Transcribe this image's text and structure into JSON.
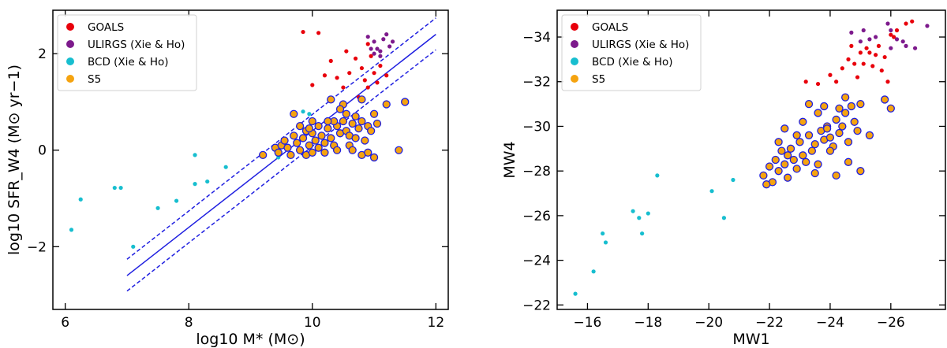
{
  "chart_data": [
    {
      "type": "scatter",
      "panel": "left",
      "xlabel": "log10 M* (M⊙)",
      "ylabel": "log10 SFR_W4 (M⊙ yr−1)",
      "xlim": [
        5.8,
        12.2
      ],
      "ylim": [
        -3.3,
        2.9
      ],
      "xticks": [
        6,
        8,
        10,
        12
      ],
      "xtick_labels": [
        "6",
        "8",
        "10",
        "12"
      ],
      "yticks": [
        -2,
        0,
        2
      ],
      "ytick_labels": [
        "−2",
        "0",
        "2"
      ],
      "legend_position": "top-left",
      "legend": [
        {
          "label": "GOALS",
          "color": "#e8000b"
        },
        {
          "label": "ULIRGS (Xie & Ho)",
          "color": "#7d1a8c"
        },
        {
          "label": "BCD (Xie & Ho)",
          "color": "#17becf"
        },
        {
          "label": "S5",
          "color": "#f5a30f"
        }
      ],
      "fit_lines": [
        {
          "name": "relation",
          "style": "solid",
          "x": [
            7.0,
            12.0
          ],
          "y": [
            -2.6,
            2.4
          ]
        },
        {
          "name": "upper",
          "style": "dashed",
          "x": [
            7.0,
            12.0
          ],
          "y": [
            -2.26,
            2.74
          ]
        },
        {
          "name": "lower",
          "style": "dashed",
          "x": [
            7.0,
            12.0
          ],
          "y": [
            -2.92,
            2.08
          ]
        }
      ],
      "series": [
        {
          "name": "GOALS",
          "color": "#e8000b",
          "points": [
            [
              9.85,
              2.45
            ],
            [
              10.1,
              2.43
            ],
            [
              10.3,
              1.85
            ],
            [
              10.55,
              2.05
            ],
            [
              10.6,
              1.6
            ],
            [
              10.7,
              1.9
            ],
            [
              10.8,
              1.7
            ],
            [
              10.85,
              1.45
            ],
            [
              10.9,
              1.3
            ],
            [
              10.95,
              1.95
            ],
            [
              11.0,
              1.6
            ],
            [
              11.05,
              1.4
            ],
            [
              11.1,
              1.75
            ],
            [
              10.2,
              1.55
            ],
            [
              10.4,
              1.5
            ],
            [
              10.0,
              1.35
            ],
            [
              10.9,
              2.2
            ],
            [
              11.2,
              1.55
            ],
            [
              10.75,
              1.1
            ],
            [
              10.5,
              1.3
            ]
          ]
        },
        {
          "name": "ULIRGS (Xie & Ho)",
          "color": "#7d1a8c",
          "points": [
            [
              10.9,
              2.35
            ],
            [
              11.0,
              2.25
            ],
            [
              11.05,
              2.1
            ],
            [
              11.1,
              2.05
            ],
            [
              11.15,
              2.3
            ],
            [
              11.2,
              2.4
            ],
            [
              11.3,
              2.25
            ],
            [
              11.25,
              2.15
            ],
            [
              11.0,
              2.0
            ],
            [
              11.1,
              1.95
            ],
            [
              10.95,
              2.1
            ]
          ]
        },
        {
          "name": "BCD (Xie & Ho)",
          "color": "#17becf",
          "points": [
            [
              6.1,
              -1.65
            ],
            [
              6.25,
              -1.02
            ],
            [
              6.8,
              -0.78
            ],
            [
              6.9,
              -0.78
            ],
            [
              7.1,
              -2.0
            ],
            [
              7.5,
              -1.2
            ],
            [
              7.8,
              -1.05
            ],
            [
              8.1,
              -0.7
            ],
            [
              8.1,
              -0.1
            ],
            [
              8.3,
              -0.65
            ],
            [
              8.6,
              -0.35
            ],
            [
              9.45,
              -0.15
            ],
            [
              9.85,
              0.8
            ],
            [
              9.95,
              0.75
            ],
            [
              10.05,
              0.2
            ]
          ]
        },
        {
          "name": "S5",
          "color": "#f5a30f",
          "points": [
            [
              9.2,
              -0.1
            ],
            [
              9.4,
              0.05
            ],
            [
              9.45,
              -0.05
            ],
            [
              9.5,
              0.1
            ],
            [
              9.55,
              0.2
            ],
            [
              9.6,
              0.05
            ],
            [
              9.65,
              -0.1
            ],
            [
              9.7,
              0.3
            ],
            [
              9.75,
              0.15
            ],
            [
              9.8,
              0.0
            ],
            [
              9.85,
              0.25
            ],
            [
              9.9,
              0.4
            ],
            [
              9.95,
              0.1
            ],
            [
              10.0,
              0.35
            ],
            [
              10.05,
              0.2
            ],
            [
              10.1,
              0.05
            ],
            [
              10.15,
              0.3
            ],
            [
              10.2,
              0.15
            ],
            [
              10.25,
              0.45
            ],
            [
              10.3,
              0.25
            ],
            [
              10.35,
              0.1
            ],
            [
              10.4,
              0.5
            ],
            [
              10.45,
              0.35
            ],
            [
              10.5,
              0.6
            ],
            [
              10.55,
              0.4
            ],
            [
              10.6,
              0.3
            ],
            [
              10.65,
              0.55
            ],
            [
              10.7,
              0.7
            ],
            [
              10.75,
              0.45
            ],
            [
              10.8,
              0.6
            ],
            [
              10.85,
              0.2
            ],
            [
              10.9,
              0.5
            ],
            [
              10.95,
              0.4
            ],
            [
              11.0,
              0.75
            ],
            [
              11.05,
              0.55
            ],
            [
              9.9,
              -0.1
            ],
            [
              10.0,
              -0.05
            ],
            [
              10.2,
              -0.05
            ],
            [
              10.4,
              0.0
            ],
            [
              10.6,
              0.1
            ],
            [
              10.8,
              -0.1
            ],
            [
              11.4,
              0.0
            ],
            [
              11.5,
              1.0
            ],
            [
              11.2,
              0.95
            ],
            [
              10.3,
              1.05
            ],
            [
              10.5,
              0.95
            ],
            [
              10.8,
              1.05
            ],
            [
              10.7,
              0.25
            ],
            [
              10.45,
              0.85
            ],
            [
              10.0,
              0.6
            ],
            [
              9.8,
              0.5
            ],
            [
              9.7,
              0.75
            ],
            [
              10.35,
              0.6
            ],
            [
              10.55,
              0.75
            ],
            [
              10.65,
              0.0
            ],
            [
              10.1,
              0.5
            ],
            [
              9.95,
              0.45
            ],
            [
              10.25,
              0.6
            ],
            [
              10.9,
              -0.05
            ],
            [
              11.0,
              -0.15
            ]
          ]
        }
      ],
      "ringed_series": "S5"
    },
    {
      "type": "scatter",
      "panel": "right",
      "xlabel": "MW1",
      "ylabel": "MW4",
      "xlim": [
        -15.0,
        -27.8
      ],
      "ylim": [
        -21.8,
        -35.2
      ],
      "xticks": [
        -16,
        -18,
        -20,
        -22,
        -24,
        -26
      ],
      "xtick_labels": [
        "−16",
        "−18",
        "−20",
        "−22",
        "−24",
        "−26"
      ],
      "yticks": [
        -22,
        -24,
        -26,
        -28,
        -30,
        -32,
        -34
      ],
      "ytick_labels": [
        "−22",
        "−24",
        "−26",
        "−28",
        "−30",
        "−32",
        "−34"
      ],
      "legend_position": "top-left",
      "legend": [
        {
          "label": "GOALS",
          "color": "#e8000b"
        },
        {
          "label": "ULIRGS (Xie & Ho)",
          "color": "#7d1a8c"
        },
        {
          "label": "BCD (Xie & Ho)",
          "color": "#17becf"
        },
        {
          "label": "S5",
          "color": "#f5a30f"
        }
      ],
      "series": [
        {
          "name": "GOALS",
          "color": "#e8000b",
          "points": [
            [
              -23.2,
              -32.0
            ],
            [
              -23.6,
              -31.9
            ],
            [
              -24.0,
              -32.3
            ],
            [
              -24.2,
              -32.0
            ],
            [
              -24.4,
              -32.6
            ],
            [
              -24.6,
              -33.0
            ],
            [
              -24.9,
              -32.2
            ],
            [
              -25.1,
              -32.8
            ],
            [
              -25.2,
              -33.5
            ],
            [
              -25.3,
              -33.3
            ],
            [
              -25.5,
              -33.2
            ],
            [
              -25.6,
              -33.6
            ],
            [
              -25.8,
              -33.1
            ],
            [
              -26.0,
              -34.1
            ],
            [
              -26.2,
              -34.3
            ],
            [
              -26.5,
              -34.6
            ],
            [
              -26.7,
              -34.7
            ],
            [
              -24.7,
              -33.6
            ],
            [
              -25.0,
              -33.3
            ],
            [
              -24.8,
              -32.8
            ],
            [
              -25.4,
              -32.7
            ],
            [
              -25.9,
              -32.0
            ],
            [
              -26.1,
              -34.0
            ],
            [
              -25.7,
              -32.5
            ]
          ]
        },
        {
          "name": "ULIRGS (Xie & Ho)",
          "color": "#7d1a8c",
          "points": [
            [
              -24.7,
              -34.2
            ],
            [
              -25.0,
              -33.8
            ],
            [
              -25.1,
              -34.3
            ],
            [
              -25.3,
              -33.9
            ],
            [
              -25.5,
              -34.0
            ],
            [
              -25.9,
              -34.6
            ],
            [
              -26.0,
              -34.3
            ],
            [
              -26.2,
              -33.9
            ],
            [
              -26.4,
              -33.8
            ],
            [
              -26.5,
              -33.6
            ],
            [
              -26.8,
              -33.5
            ],
            [
              -27.2,
              -34.5
            ],
            [
              -26.0,
              -33.5
            ]
          ]
        },
        {
          "name": "BCD (Xie & Ho)",
          "color": "#17becf",
          "points": [
            [
              -15.6,
              -22.5
            ],
            [
              -16.2,
              -23.5
            ],
            [
              -16.6,
              -24.8
            ],
            [
              -16.5,
              -25.2
            ],
            [
              -17.5,
              -26.2
            ],
            [
              -17.7,
              -25.9
            ],
            [
              -17.8,
              -25.2
            ],
            [
              -18.0,
              -26.1
            ],
            [
              -18.3,
              -27.8
            ],
            [
              -20.1,
              -27.1
            ],
            [
              -20.5,
              -25.9
            ],
            [
              -20.8,
              -27.6
            ]
          ]
        },
        {
          "name": "S5",
          "color": "#f5a30f",
          "points": [
            [
              -21.8,
              -27.8
            ],
            [
              -22.0,
              -28.2
            ],
            [
              -22.1,
              -27.5
            ],
            [
              -22.2,
              -28.5
            ],
            [
              -22.3,
              -28.0
            ],
            [
              -22.4,
              -28.9
            ],
            [
              -22.5,
              -28.3
            ],
            [
              -22.6,
              -27.7
            ],
            [
              -22.7,
              -29.0
            ],
            [
              -22.8,
              -28.5
            ],
            [
              -22.9,
              -28.1
            ],
            [
              -23.0,
              -29.3
            ],
            [
              -23.1,
              -28.7
            ],
            [
              -23.2,
              -28.4
            ],
            [
              -23.3,
              -29.6
            ],
            [
              -23.4,
              -28.9
            ],
            [
              -23.5,
              -29.2
            ],
            [
              -23.6,
              -28.3
            ],
            [
              -23.7,
              -29.8
            ],
            [
              -23.8,
              -29.4
            ],
            [
              -23.9,
              -30.0
            ],
            [
              -24.0,
              -29.5
            ],
            [
              -24.1,
              -29.1
            ],
            [
              -24.2,
              -30.3
            ],
            [
              -24.3,
              -29.7
            ],
            [
              -24.4,
              -30.0
            ],
            [
              -24.5,
              -30.6
            ],
            [
              -24.6,
              -29.3
            ],
            [
              -24.7,
              -30.9
            ],
            [
              -24.8,
              -30.2
            ],
            [
              -24.9,
              -29.8
            ],
            [
              -25.0,
              -31.0
            ],
            [
              -25.3,
              -29.6
            ],
            [
              -24.2,
              -27.8
            ],
            [
              -25.0,
              -28.0
            ],
            [
              -23.3,
              -31.0
            ],
            [
              -23.8,
              -30.9
            ],
            [
              -24.5,
              -31.3
            ],
            [
              -25.8,
              -31.2
            ],
            [
              -26.0,
              -30.8
            ],
            [
              -22.5,
              -29.9
            ],
            [
              -23.1,
              -30.2
            ],
            [
              -23.6,
              -30.6
            ],
            [
              -22.9,
              -29.6
            ],
            [
              -24.0,
              -28.9
            ],
            [
              -22.3,
              -29.3
            ],
            [
              -23.5,
              -27.9
            ],
            [
              -24.6,
              -28.4
            ],
            [
              -21.9,
              -27.4
            ],
            [
              -22.6,
              -28.7
            ],
            [
              -23.9,
              -29.9
            ],
            [
              -24.3,
              -30.8
            ]
          ]
        }
      ],
      "ringed_series": "S5"
    }
  ]
}
